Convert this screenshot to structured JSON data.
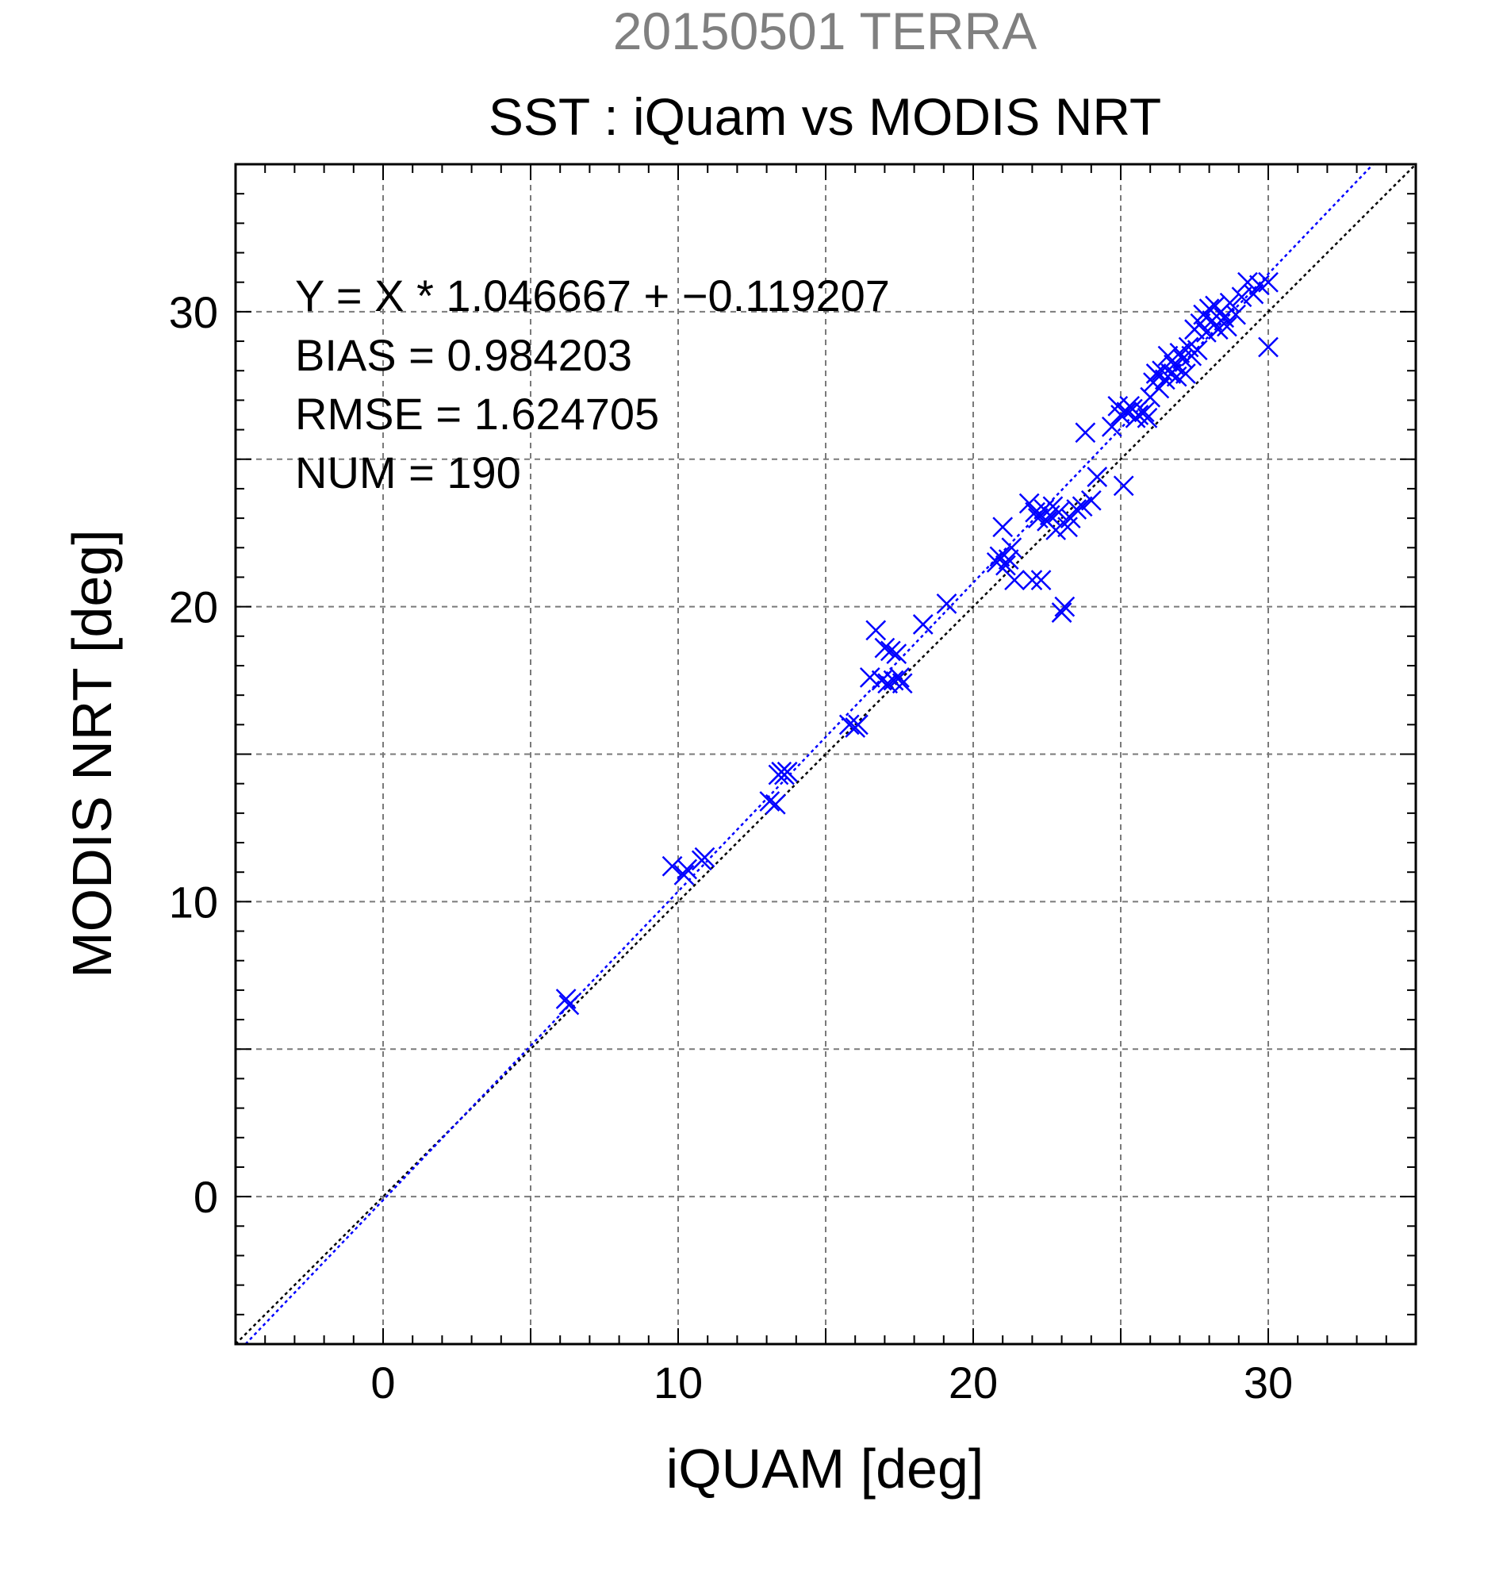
{
  "chart_data": {
    "type": "scatter",
    "subtitle": "20150501 TERRA",
    "title": "SST : iQuam vs MODIS NRT",
    "xlabel": "iQUAM [deg]",
    "ylabel": "MODIS NRT [deg]",
    "xlim": [
      -5,
      35
    ],
    "ylim": [
      -5,
      35
    ],
    "xticks": [
      0,
      10,
      20,
      30
    ],
    "yticks": [
      0,
      10,
      20,
      30
    ],
    "grid": true,
    "stats": {
      "equation": "Y = X * 1.046667 + −0.119207",
      "bias": "BIAS = 0.984203",
      "rmse": "RMSE = 1.624705",
      "num": "NUM = 190"
    },
    "fit": {
      "slope": 1.046667,
      "intercept": -0.119207
    },
    "colors": {
      "points": "#0000ff",
      "fit_line": "#0000ff",
      "identity_line": "#000000",
      "subtitle": "#808080"
    },
    "series": [
      {
        "marker": "x",
        "points": [
          [
            6.2,
            6.7
          ],
          [
            6.3,
            6.5
          ],
          [
            9.8,
            11.2
          ],
          [
            10.2,
            10.9
          ],
          [
            10.3,
            11.1
          ],
          [
            10.8,
            11.4
          ],
          [
            10.9,
            11.5
          ],
          [
            13.1,
            13.4
          ],
          [
            13.3,
            13.3
          ],
          [
            13.4,
            14.3
          ],
          [
            13.5,
            14.4
          ],
          [
            13.6,
            14.3
          ],
          [
            13.7,
            14.4
          ],
          [
            15.8,
            16.0
          ],
          [
            16.0,
            15.9
          ],
          [
            16.1,
            16.0
          ],
          [
            16.5,
            17.6
          ],
          [
            16.7,
            19.2
          ],
          [
            16.9,
            17.5
          ],
          [
            17.0,
            18.6
          ],
          [
            17.1,
            17.4
          ],
          [
            17.2,
            18.5
          ],
          [
            17.3,
            17.5
          ],
          [
            17.4,
            18.4
          ],
          [
            17.5,
            17.6
          ],
          [
            17.6,
            17.4
          ],
          [
            18.3,
            19.4
          ],
          [
            19.1,
            20.1
          ],
          [
            20.8,
            21.5
          ],
          [
            20.9,
            21.7
          ],
          [
            21.0,
            22.7
          ],
          [
            21.1,
            21.4
          ],
          [
            21.2,
            21.6
          ],
          [
            21.3,
            22.0
          ],
          [
            21.4,
            20.9
          ],
          [
            21.9,
            23.5
          ],
          [
            22.0,
            20.9
          ],
          [
            22.1,
            23.2
          ],
          [
            22.2,
            23.0
          ],
          [
            22.3,
            20.9
          ],
          [
            22.4,
            23.3
          ],
          [
            22.5,
            22.9
          ],
          [
            22.6,
            23.1
          ],
          [
            22.7,
            23.4
          ],
          [
            22.8,
            22.6
          ],
          [
            22.9,
            23.2
          ],
          [
            23.0,
            19.8
          ],
          [
            23.1,
            20.0
          ],
          [
            23.2,
            22.7
          ],
          [
            23.3,
            23.0
          ],
          [
            23.5,
            23.3
          ],
          [
            23.7,
            23.4
          ],
          [
            23.8,
            25.9
          ],
          [
            24.0,
            23.6
          ],
          [
            24.2,
            24.4
          ],
          [
            24.7,
            26.1
          ],
          [
            24.9,
            26.8
          ],
          [
            25.0,
            26.5
          ],
          [
            25.1,
            24.1
          ],
          [
            25.2,
            26.6
          ],
          [
            25.3,
            26.8
          ],
          [
            25.4,
            26.7
          ],
          [
            25.5,
            26.4
          ],
          [
            25.6,
            26.5
          ],
          [
            25.8,
            26.6
          ],
          [
            25.9,
            26.4
          ],
          [
            26.0,
            27.1
          ],
          [
            26.1,
            27.6
          ],
          [
            26.2,
            27.9
          ],
          [
            26.3,
            27.4
          ],
          [
            26.4,
            28.0
          ],
          [
            26.5,
            27.7
          ],
          [
            26.6,
            28.5
          ],
          [
            26.7,
            27.9
          ],
          [
            26.8,
            28.2
          ],
          [
            26.9,
            27.8
          ],
          [
            27.0,
            28.6
          ],
          [
            27.1,
            28.4
          ],
          [
            27.2,
            27.9
          ],
          [
            27.3,
            28.8
          ],
          [
            27.4,
            28.5
          ],
          [
            27.5,
            29.4
          ],
          [
            27.6,
            28.7
          ],
          [
            27.7,
            29.6
          ],
          [
            27.8,
            29.9
          ],
          [
            27.9,
            29.3
          ],
          [
            28.0,
            30.1
          ],
          [
            28.1,
            29.7
          ],
          [
            28.2,
            30.2
          ],
          [
            28.3,
            29.4
          ],
          [
            28.4,
            30.0
          ],
          [
            28.5,
            29.8
          ],
          [
            28.6,
            29.5
          ],
          [
            28.7,
            30.3
          ],
          [
            28.9,
            29.9
          ],
          [
            29.1,
            30.5
          ],
          [
            29.3,
            31.0
          ],
          [
            29.5,
            30.6
          ],
          [
            29.7,
            30.9
          ],
          [
            30.0,
            28.8
          ],
          [
            30.0,
            31.0
          ]
        ]
      }
    ]
  }
}
